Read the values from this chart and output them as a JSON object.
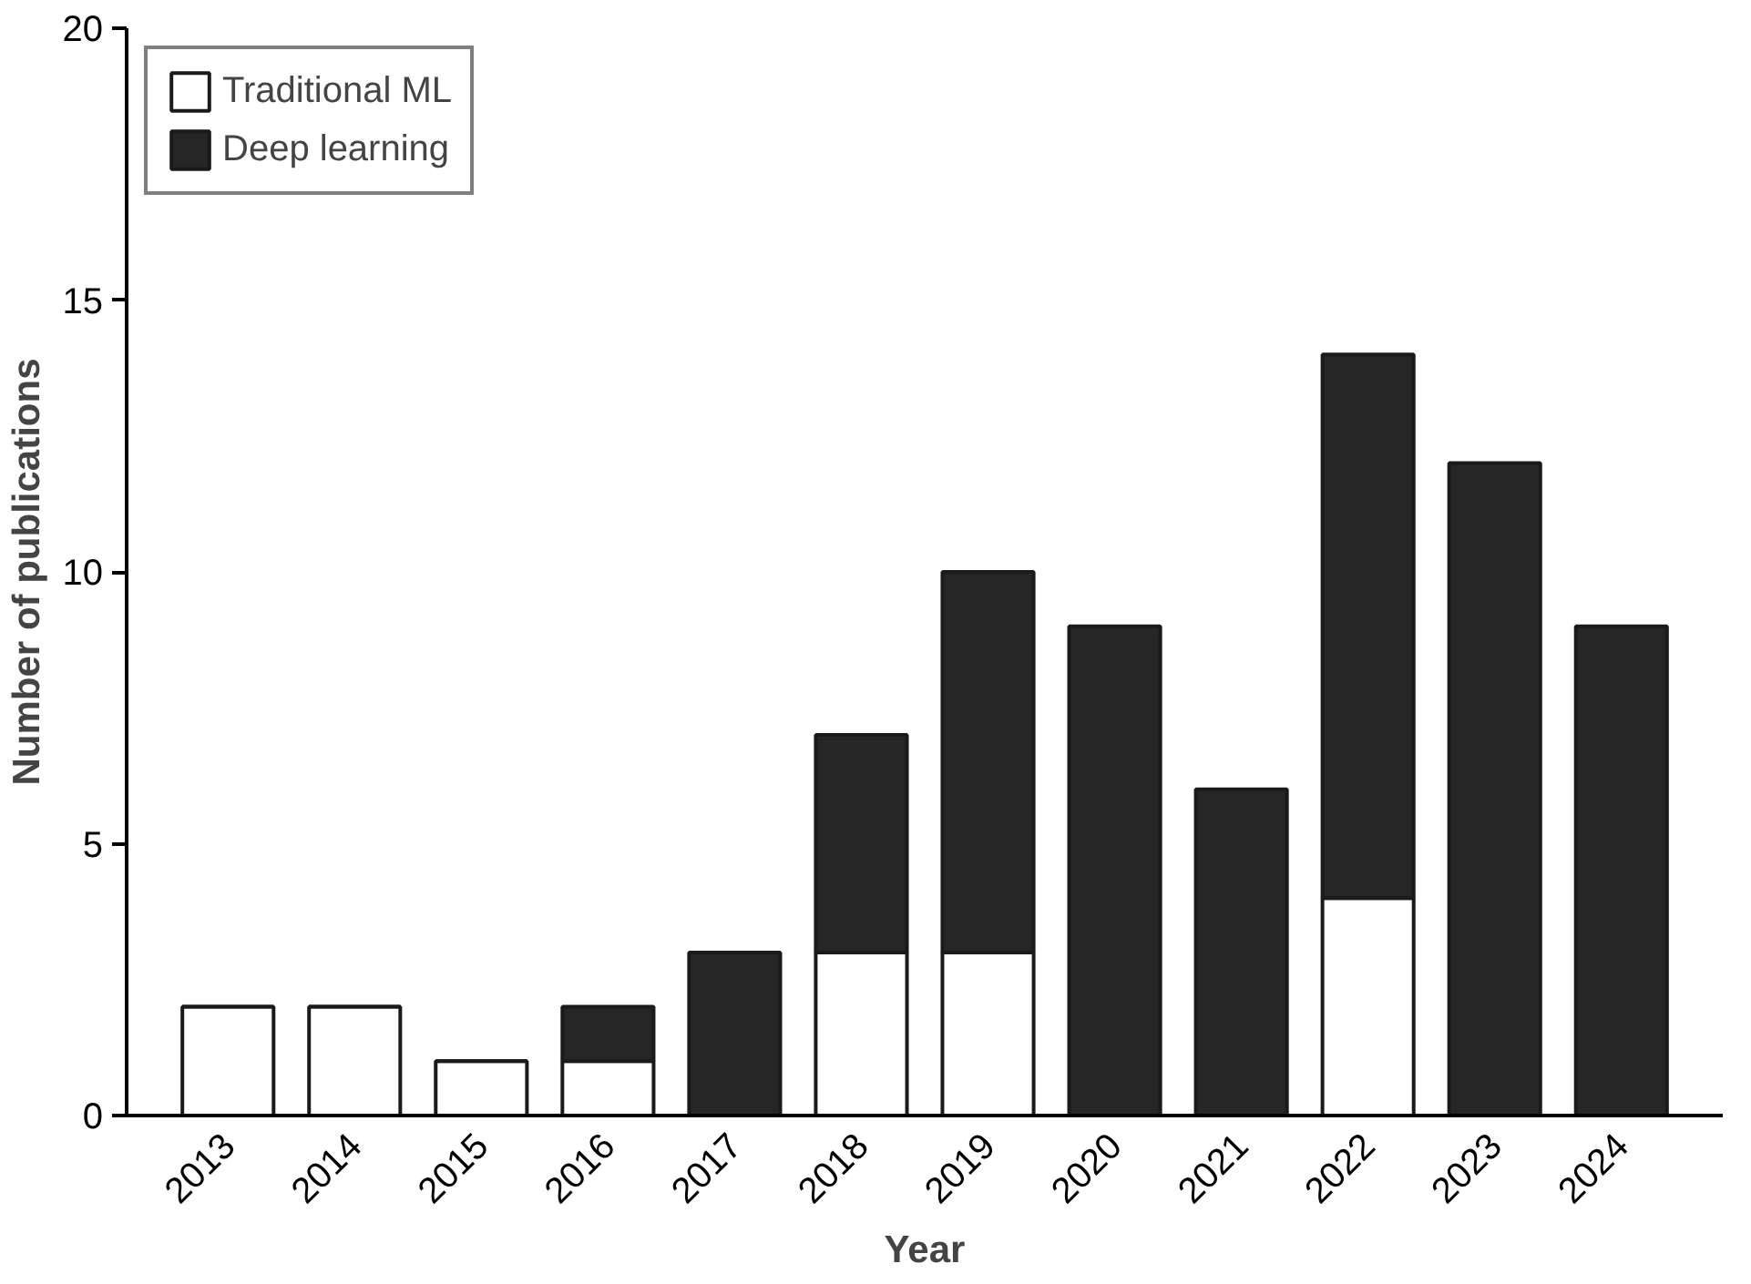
{
  "chart_data": {
    "type": "bar",
    "stacked": true,
    "xlabel": "Year",
    "ylabel": "Number of publications",
    "categories": [
      "2013",
      "2014",
      "2015",
      "2016",
      "2017",
      "2018",
      "2019",
      "2020",
      "2021",
      "2022",
      "2023",
      "2024"
    ],
    "series": [
      {
        "name": "Traditional ML",
        "color": "#ffffff",
        "values": [
          2,
          2,
          1,
          1,
          0,
          3,
          3,
          0,
          0,
          4,
          0,
          0
        ]
      },
      {
        "name": "Deep learning",
        "color": "#262626",
        "values": [
          0,
          0,
          0,
          1,
          3,
          4,
          7,
          9,
          6,
          10,
          12,
          9
        ]
      }
    ],
    "ylim": [
      0,
      20
    ],
    "yticks": [
      0,
      5,
      10,
      15,
      20
    ],
    "grid": false,
    "legend": "top left"
  }
}
